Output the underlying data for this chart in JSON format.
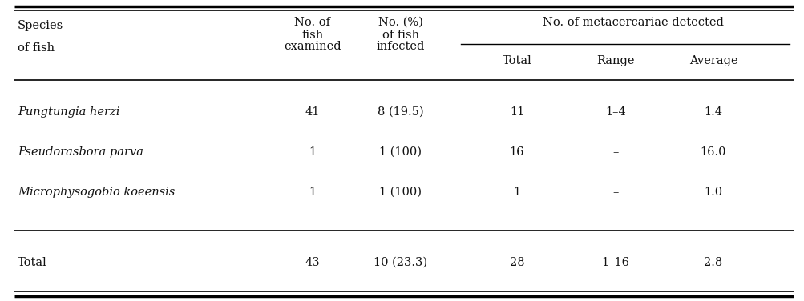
{
  "rows": [
    [
      "Pungtungia herzi",
      "41",
      "8 (19.5)",
      "11",
      "1–4",
      "1.4"
    ],
    [
      "Pseudorasbora parva",
      "1",
      "1 (100)",
      "16",
      "–",
      "16.0"
    ],
    [
      "Microphysogobio koeensis",
      "1",
      "1 (100)",
      "1",
      "–",
      "1.0"
    ]
  ],
  "total_row": [
    "Total",
    "43",
    "10 (23.3)",
    "28",
    "1–16",
    "2.8"
  ],
  "background_color": "#ffffff",
  "text_color": "#111111",
  "font_size": 10.5
}
